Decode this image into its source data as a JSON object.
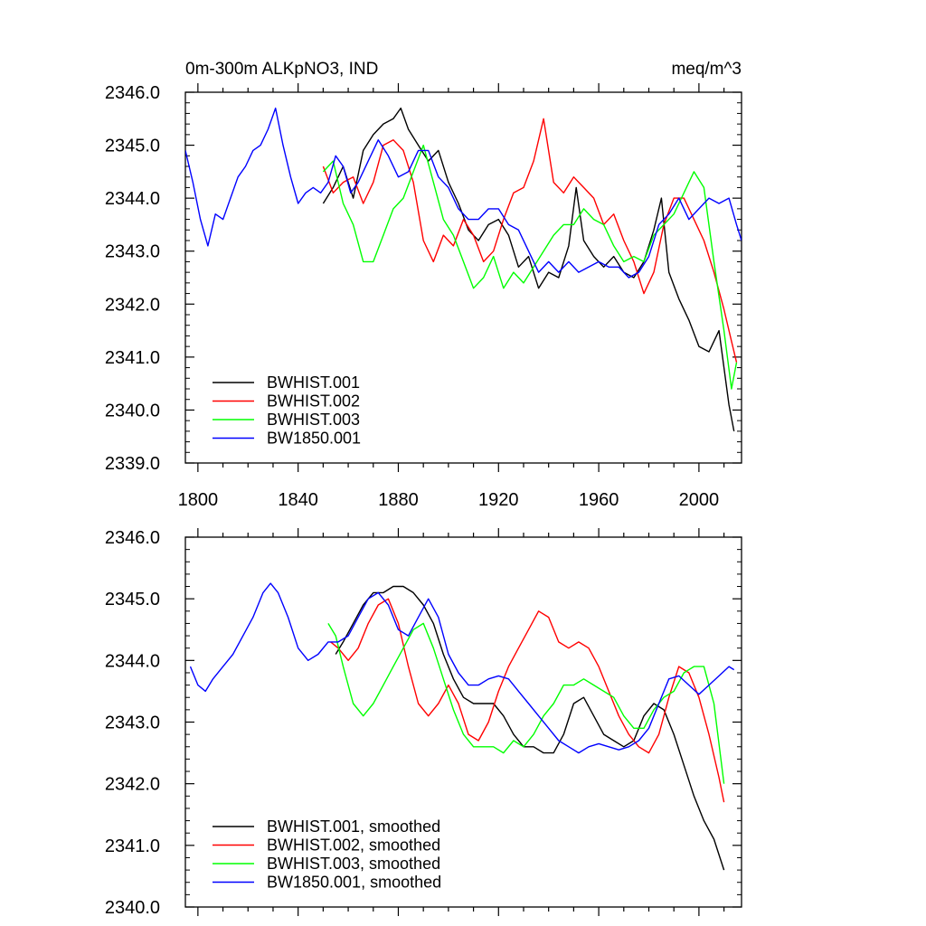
{
  "chart_data": [
    {
      "type": "line",
      "title_left": "0m-300m ALKpNO3, IND",
      "title_right": "meq/m^3",
      "xlim": [
        1795,
        2017
      ],
      "ylim": [
        2339.0,
        2346.0
      ],
      "x_ticks": [
        1800,
        1840,
        1880,
        1920,
        1960,
        2000
      ],
      "x_tick_labels": [
        "1800",
        "1840",
        "1880",
        "1920",
        "1960",
        "2000"
      ],
      "y_ticks": [
        2339.0,
        2340.0,
        2341.0,
        2342.0,
        2343.0,
        2344.0,
        2345.0,
        2346.0
      ],
      "y_tick_labels": [
        "2339.0",
        "2340.0",
        "2341.0",
        "2342.0",
        "2343.0",
        "2344.0",
        "2345.0",
        "2346.0"
      ],
      "legend_position": "bottom-left",
      "grid": false,
      "series": [
        {
          "name": "BWHIST.001",
          "color": "#000000",
          "x": [
            1850,
            1854,
            1858,
            1862,
            1866,
            1870,
            1874,
            1878,
            1881,
            1884,
            1888,
            1892,
            1896,
            1900,
            1904,
            1908,
            1912,
            1916,
            1920,
            1924,
            1928,
            1932,
            1936,
            1940,
            1944,
            1948,
            1951,
            1954,
            1958,
            1962,
            1966,
            1970,
            1974,
            1978,
            1982,
            1985,
            1988,
            1992,
            1996,
            2000,
            2004,
            2008,
            2012,
            2014
          ],
          "y": [
            2343.9,
            2344.2,
            2344.6,
            2344.0,
            2344.9,
            2345.2,
            2345.4,
            2345.5,
            2345.7,
            2345.3,
            2345.0,
            2344.7,
            2344.9,
            2344.3,
            2343.9,
            2343.4,
            2343.2,
            2343.5,
            2343.6,
            2343.3,
            2342.7,
            2342.9,
            2342.3,
            2342.6,
            2342.5,
            2343.1,
            2344.2,
            2343.2,
            2342.9,
            2342.7,
            2342.9,
            2342.6,
            2342.5,
            2342.8,
            2343.4,
            2344.0,
            2342.6,
            2342.1,
            2341.7,
            2341.2,
            2341.1,
            2341.5,
            2340.1,
            2339.6
          ]
        },
        {
          "name": "BWHIST.002",
          "color": "#ff0000",
          "x": [
            1850,
            1854,
            1858,
            1862,
            1866,
            1870,
            1874,
            1878,
            1882,
            1886,
            1890,
            1894,
            1898,
            1902,
            1906,
            1910,
            1914,
            1918,
            1922,
            1926,
            1930,
            1934,
            1938,
            1942,
            1946,
            1950,
            1954,
            1958,
            1962,
            1966,
            1970,
            1974,
            1978,
            1982,
            1986,
            1990,
            1994,
            1998,
            2002,
            2006,
            2010,
            2013,
            2015
          ],
          "y": [
            2344.6,
            2344.1,
            2344.3,
            2344.4,
            2343.9,
            2344.3,
            2345.0,
            2345.1,
            2344.9,
            2344.3,
            2343.2,
            2342.8,
            2343.3,
            2343.1,
            2343.6,
            2343.3,
            2342.8,
            2343.0,
            2343.6,
            2344.1,
            2344.2,
            2344.7,
            2345.5,
            2344.3,
            2344.1,
            2344.4,
            2344.2,
            2344.0,
            2343.5,
            2343.7,
            2343.2,
            2342.8,
            2342.2,
            2342.6,
            2343.5,
            2344.0,
            2344.0,
            2343.6,
            2343.2,
            2342.6,
            2341.9,
            2341.3,
            2340.9
          ]
        },
        {
          "name": "BWHIST.003",
          "color": "#00ff00",
          "x": [
            1850,
            1854,
            1858,
            1862,
            1866,
            1870,
            1874,
            1878,
            1882,
            1886,
            1890,
            1894,
            1898,
            1902,
            1906,
            1910,
            1914,
            1918,
            1922,
            1926,
            1930,
            1934,
            1938,
            1942,
            1946,
            1950,
            1954,
            1958,
            1962,
            1966,
            1970,
            1974,
            1978,
            1982,
            1986,
            1990,
            1994,
            1998,
            2002,
            2006,
            2010,
            2013,
            2015
          ],
          "y": [
            2344.5,
            2344.7,
            2343.9,
            2343.5,
            2342.8,
            2342.8,
            2343.3,
            2343.8,
            2344.0,
            2344.5,
            2345.0,
            2344.3,
            2343.6,
            2343.3,
            2342.8,
            2342.3,
            2342.5,
            2342.9,
            2342.3,
            2342.6,
            2342.4,
            2342.7,
            2343.0,
            2343.3,
            2343.5,
            2343.5,
            2343.8,
            2343.6,
            2343.5,
            2343.1,
            2342.8,
            2342.9,
            2342.8,
            2343.3,
            2343.5,
            2343.7,
            2344.1,
            2344.5,
            2344.2,
            2342.8,
            2341.5,
            2340.4,
            2340.9
          ]
        },
        {
          "name": "BW1850.001",
          "color": "#0000ff",
          "x": [
            1795,
            1798,
            1801,
            1804,
            1807,
            1810,
            1813,
            1816,
            1819,
            1822,
            1825,
            1828,
            1831,
            1834,
            1837,
            1840,
            1843,
            1846,
            1849,
            1852,
            1855,
            1858,
            1861,
            1864,
            1868,
            1872,
            1876,
            1880,
            1884,
            1888,
            1892,
            1896,
            1900,
            1904,
            1908,
            1912,
            1916,
            1920,
            1924,
            1928,
            1932,
            1936,
            1940,
            1944,
            1948,
            1952,
            1956,
            1960,
            1964,
            1968,
            1972,
            1976,
            1980,
            1984,
            1988,
            1992,
            1996,
            2000,
            2004,
            2008,
            2012,
            2015,
            2017
          ],
          "y": [
            2344.9,
            2344.3,
            2343.6,
            2343.1,
            2343.7,
            2343.6,
            2344.0,
            2344.4,
            2344.6,
            2344.9,
            2345.0,
            2345.3,
            2345.7,
            2345.0,
            2344.4,
            2343.9,
            2344.1,
            2344.2,
            2344.1,
            2344.3,
            2344.8,
            2344.6,
            2344.1,
            2344.3,
            2344.7,
            2345.1,
            2344.8,
            2344.4,
            2344.5,
            2344.9,
            2344.9,
            2344.4,
            2344.2,
            2343.8,
            2343.6,
            2343.6,
            2343.8,
            2343.8,
            2343.5,
            2343.4,
            2343.0,
            2342.6,
            2342.8,
            2342.6,
            2342.8,
            2342.6,
            2342.7,
            2342.8,
            2342.7,
            2342.7,
            2342.5,
            2342.6,
            2342.9,
            2343.5,
            2343.7,
            2344.0,
            2343.6,
            2343.8,
            2344.0,
            2343.9,
            2344.0,
            2343.5,
            2343.2
          ]
        }
      ]
    },
    {
      "type": "line",
      "xlim": [
        1795,
        2017
      ],
      "ylim": [
        2340.0,
        2346.0
      ],
      "x_ticks": [
        1800,
        1840,
        1880,
        1920,
        1960,
        2000
      ],
      "x_tick_labels": [
        "",
        "",
        "",
        "",
        "",
        ""
      ],
      "y_ticks": [
        2340.0,
        2341.0,
        2342.0,
        2343.0,
        2344.0,
        2345.0,
        2346.0
      ],
      "y_tick_labels": [
        "2340.0",
        "2341.0",
        "2342.0",
        "2343.0",
        "2344.0",
        "2345.0",
        "2346.0"
      ],
      "legend_position": "bottom-left",
      "grid": false,
      "series": [
        {
          "name": "BWHIST.001, smoothed",
          "color": "#000000",
          "x": [
            1855,
            1858,
            1862,
            1866,
            1870,
            1874,
            1878,
            1882,
            1886,
            1890,
            1894,
            1898,
            1902,
            1906,
            1910,
            1914,
            1918,
            1922,
            1926,
            1930,
            1934,
            1938,
            1942,
            1946,
            1950,
            1954,
            1958,
            1962,
            1966,
            1970,
            1974,
            1978,
            1982,
            1986,
            1990,
            1994,
            1998,
            2002,
            2006,
            2010
          ],
          "y": [
            2344.1,
            2344.3,
            2344.6,
            2344.9,
            2345.1,
            2345.1,
            2345.2,
            2345.2,
            2345.1,
            2344.9,
            2344.6,
            2344.1,
            2343.7,
            2343.4,
            2343.3,
            2343.3,
            2343.3,
            2343.1,
            2342.8,
            2342.6,
            2342.6,
            2342.5,
            2342.5,
            2342.8,
            2343.3,
            2343.4,
            2343.1,
            2342.8,
            2342.7,
            2342.6,
            2342.7,
            2343.1,
            2343.3,
            2343.2,
            2342.8,
            2342.3,
            2341.8,
            2341.4,
            2341.1,
            2340.6
          ]
        },
        {
          "name": "BWHIST.002, smoothed",
          "color": "#ff0000",
          "x": [
            1853,
            1856,
            1860,
            1864,
            1868,
            1872,
            1876,
            1880,
            1884,
            1888,
            1892,
            1896,
            1900,
            1904,
            1908,
            1912,
            1916,
            1920,
            1924,
            1928,
            1932,
            1936,
            1940,
            1944,
            1948,
            1952,
            1956,
            1960,
            1964,
            1968,
            1972,
            1976,
            1980,
            1984,
            1988,
            1992,
            1996,
            2000,
            2004,
            2008,
            2010
          ],
          "y": [
            2344.3,
            2344.2,
            2344.0,
            2344.2,
            2344.6,
            2344.9,
            2345.0,
            2344.6,
            2343.9,
            2343.3,
            2343.1,
            2343.3,
            2343.6,
            2343.3,
            2342.8,
            2342.7,
            2343.0,
            2343.5,
            2343.9,
            2344.2,
            2344.5,
            2344.8,
            2344.7,
            2344.3,
            2344.2,
            2344.3,
            2344.2,
            2343.9,
            2343.5,
            2343.1,
            2342.8,
            2342.6,
            2342.5,
            2342.8,
            2343.4,
            2343.9,
            2343.8,
            2343.4,
            2342.8,
            2342.1,
            2341.7
          ]
        },
        {
          "name": "BWHIST.003, smoothed",
          "color": "#00ff00",
          "x": [
            1852,
            1855,
            1858,
            1862,
            1866,
            1870,
            1874,
            1878,
            1882,
            1886,
            1890,
            1894,
            1898,
            1902,
            1906,
            1910,
            1914,
            1918,
            1922,
            1926,
            1930,
            1934,
            1938,
            1942,
            1946,
            1950,
            1954,
            1958,
            1962,
            1966,
            1970,
            1974,
            1978,
            1982,
            1986,
            1990,
            1994,
            1998,
            2002,
            2006,
            2010
          ],
          "y": [
            2344.6,
            2344.4,
            2343.9,
            2343.3,
            2343.1,
            2343.3,
            2343.6,
            2343.9,
            2344.2,
            2344.5,
            2344.6,
            2344.2,
            2343.7,
            2343.2,
            2342.8,
            2342.6,
            2342.6,
            2342.6,
            2342.5,
            2342.7,
            2342.6,
            2342.8,
            2343.1,
            2343.3,
            2343.6,
            2343.6,
            2343.7,
            2343.6,
            2343.5,
            2343.4,
            2343.1,
            2342.9,
            2342.9,
            2343.2,
            2343.4,
            2343.5,
            2343.8,
            2343.9,
            2343.9,
            2343.3,
            2342.0
          ]
        },
        {
          "name": "BW1850.001, smoothed",
          "color": "#0000ff",
          "x": [
            1797,
            1800,
            1803,
            1806,
            1810,
            1814,
            1818,
            1822,
            1826,
            1829,
            1832,
            1836,
            1840,
            1844,
            1848,
            1852,
            1856,
            1860,
            1864,
            1868,
            1872,
            1876,
            1880,
            1884,
            1888,
            1892,
            1896,
            1900,
            1904,
            1908,
            1912,
            1916,
            1920,
            1924,
            1928,
            1932,
            1936,
            1940,
            1944,
            1948,
            1952,
            1956,
            1960,
            1964,
            1968,
            1972,
            1976,
            1980,
            1984,
            1988,
            1992,
            1996,
            2000,
            2004,
            2008,
            2012,
            2014
          ],
          "y": [
            2343.9,
            2343.6,
            2343.5,
            2343.7,
            2343.9,
            2344.1,
            2344.4,
            2344.7,
            2345.1,
            2345.25,
            2345.1,
            2344.7,
            2344.2,
            2344.0,
            2344.1,
            2344.3,
            2344.3,
            2344.4,
            2344.7,
            2345.0,
            2345.1,
            2344.9,
            2344.5,
            2344.4,
            2344.7,
            2345.0,
            2344.7,
            2344.1,
            2343.8,
            2343.6,
            2343.6,
            2343.7,
            2343.75,
            2343.7,
            2343.5,
            2343.3,
            2343.1,
            2342.9,
            2342.7,
            2342.6,
            2342.5,
            2342.6,
            2342.65,
            2342.6,
            2342.55,
            2342.6,
            2342.7,
            2342.9,
            2343.3,
            2343.7,
            2343.75,
            2343.6,
            2343.45,
            2343.6,
            2343.75,
            2343.9,
            2343.85
          ]
        }
      ]
    }
  ]
}
